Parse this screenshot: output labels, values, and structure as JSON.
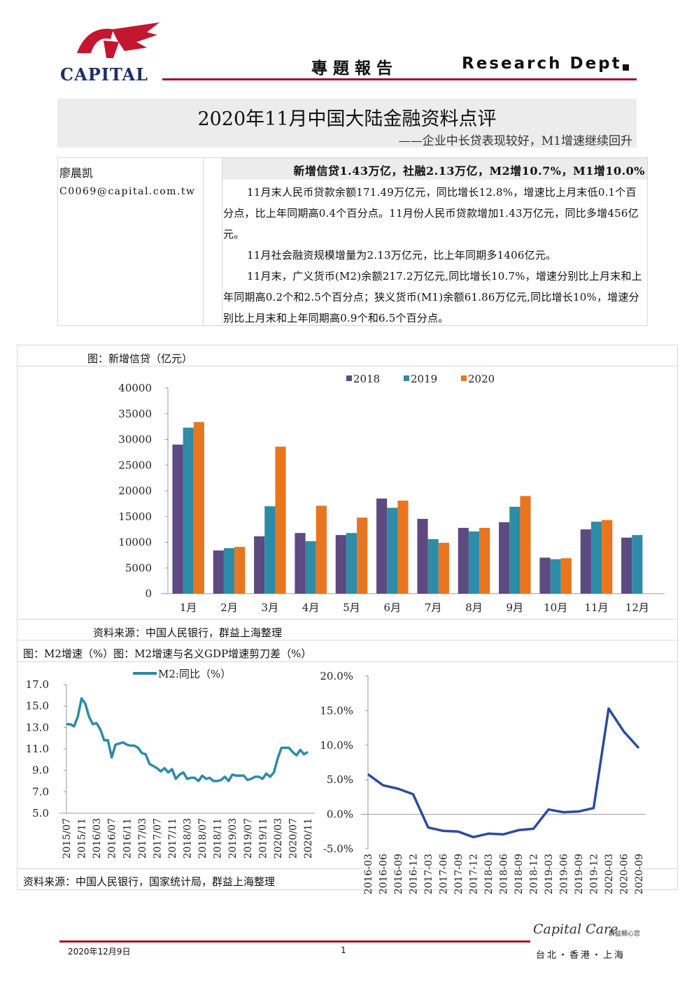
{
  "header": {
    "logo_text": "CAPITAL",
    "title": "專 題 報 告",
    "dept": "Research Dept."
  },
  "report": {
    "title": "2020年11月中国大陆金融资料点评",
    "subtitle": "——企业中长贷表现较好，M1增速继续回升"
  },
  "author": {
    "name": "廖晨凯",
    "email": "C0069@capital.com.tw"
  },
  "summary": {
    "headline": "新增信贷1.43万亿，社融2.13万亿，M2增10.7%，M1增10.0%",
    "paragraphs": [
      "11月末人民币贷款余额171.49万亿元，同比增长12.8%，增速比上月末低0.1个百分点，比上年同期高0.4个百分点。11月份人民币贷款增加1.43万亿元，同比多增456亿元。",
      "11月社会融资规模增量为2.13万亿元，比上年同期多1406亿元。",
      "11月末，广义货币(M2)余额217.2万亿元,同比增长10.7%，增速分别比上月末和上年同期高0.2个和2.5个百分点；狭义货币(M1)余额61.86万亿元,同比增长10%，增速分别比上月末和上年同期高0.9个和6.5个百分点。"
    ]
  },
  "chart_data": [
    {
      "type": "bar",
      "title": "图：新增信贷（亿元）",
      "categories": [
        "1月",
        "2月",
        "3月",
        "4月",
        "5月",
        "6月",
        "7月",
        "8月",
        "9月",
        "10月",
        "11月",
        "12月"
      ],
      "series": [
        {
          "name": "2018",
          "color": "#5c4a80",
          "values": [
            29000,
            8400,
            11150,
            11800,
            11400,
            18500,
            14550,
            12800,
            13900,
            7000,
            12500,
            10900
          ]
        },
        {
          "name": "2019",
          "color": "#2e8ca6",
          "values": [
            32300,
            8850,
            17000,
            10200,
            11800,
            16700,
            10600,
            12100,
            16900,
            6700,
            14000,
            11400
          ]
        },
        {
          "name": "2020",
          "color": "#e8761e",
          "values": [
            33400,
            9100,
            28600,
            17100,
            14800,
            18100,
            9900,
            12800,
            19000,
            6900,
            14300,
            null
          ]
        }
      ],
      "ylim": [
        0,
        40000
      ],
      "yticks": [
        0,
        5000,
        10000,
        15000,
        20000,
        25000,
        30000,
        35000,
        40000
      ],
      "grid": false,
      "legend": "top"
    },
    {
      "type": "line",
      "title": "图：M2增速（%）",
      "categories": [
        "2015/07",
        null,
        null,
        null,
        "2015/11",
        null,
        null,
        null,
        "2016/03",
        null,
        null,
        null,
        "2016/07",
        null,
        null,
        null,
        "2016/11",
        null,
        null,
        null,
        "2017/03",
        null,
        null,
        null,
        "2017/07",
        null,
        null,
        null,
        "2017/11",
        null,
        null,
        null,
        "2018/03",
        null,
        null,
        null,
        "2018/07",
        null,
        null,
        null,
        "2018/11",
        null,
        null,
        null,
        "2019/03",
        null,
        null,
        null,
        "2019/07",
        null,
        null,
        null,
        "2019/11",
        null,
        null,
        null,
        "2020/03",
        null,
        null,
        null,
        "2020/07",
        null,
        null,
        null,
        "2020/11"
      ],
      "series": [
        {
          "name": "M2:同比（%）",
          "color": "#2e8aa8",
          "values": [
            13.3,
            13.3,
            13.1,
            14.0,
            15.7,
            15.2,
            14.0,
            13.3,
            13.4,
            12.8,
            11.8,
            11.8,
            10.2,
            11.4,
            11.5,
            11.6,
            11.4,
            11.3,
            11.3,
            11.1,
            10.6,
            10.5,
            9.6,
            9.4,
            9.2,
            8.9,
            9.2,
            8.8,
            9.1,
            8.2,
            8.6,
            8.8,
            8.2,
            8.3,
            8.3,
            8.0,
            8.5,
            8.2,
            8.3,
            8.0,
            8.0,
            8.1,
            8.4,
            8.0,
            8.6,
            8.5,
            8.5,
            8.5,
            8.1,
            8.2,
            8.4,
            8.4,
            8.2,
            8.7,
            8.4,
            8.8,
            10.1,
            11.1,
            11.1,
            11.1,
            10.7,
            10.4,
            10.9,
            10.5,
            10.7
          ]
        }
      ],
      "ylim": [
        5,
        17
      ],
      "yticks": [
        {
          "value": 5,
          "label": "5.0"
        },
        {
          "value": 7,
          "label": "7.0"
        },
        {
          "value": 9,
          "label": "9.0"
        },
        {
          "value": 11,
          "label": "11.0"
        },
        {
          "value": 13,
          "label": "13.0"
        },
        {
          "value": 15,
          "label": "15.0"
        },
        {
          "value": 17,
          "label": "17.0"
        }
      ],
      "grid": false,
      "legend": "top"
    },
    {
      "type": "line",
      "title": "图：M2增速与名义GDP增速剪刀差（%）",
      "categories": [
        "2016-03",
        "2016-06",
        "2016-09",
        "2016-12",
        "2017-03",
        "2017-06",
        "2017-09",
        "2017-12",
        "2018-03",
        "2018-06",
        "2018-09",
        "2018-12",
        "2019-03",
        "2019-06",
        "2019-09",
        "2019-12",
        "2020-03",
        "2020-06",
        "2020-09"
      ],
      "series": [
        {
          "color": "#2b4d9a",
          "values": [
            5.8,
            4.2,
            3.7,
            2.9,
            -1.9,
            -2.4,
            -2.5,
            -3.3,
            -2.8,
            -2.9,
            -2.3,
            -2.1,
            0.7,
            0.3,
            0.4,
            0.9,
            15.3,
            12.0,
            9.6
          ]
        }
      ],
      "ylim": [
        -5,
        20
      ],
      "yticks": [
        {
          "value": -5,
          "label": "-5.0%"
        },
        {
          "value": 0,
          "label": "0.0%"
        },
        {
          "value": 5,
          "label": "5.0%"
        },
        {
          "value": 10,
          "label": "10.0%"
        },
        {
          "value": 15,
          "label": "15.0%"
        },
        {
          "value": 20,
          "label": "20.0%"
        }
      ],
      "grid": false
    }
  ],
  "sources": [
    "资料来源：中国人民银行，群益上海整理",
    "资料来源：中国人民银行，国家统计局，群益上海整理"
  ],
  "footer": {
    "date": "2020年12月9日",
    "page": "1",
    "brand": "Capital Care",
    "brand_cn": "群益關心您",
    "cities": "台北・香港・上海"
  }
}
